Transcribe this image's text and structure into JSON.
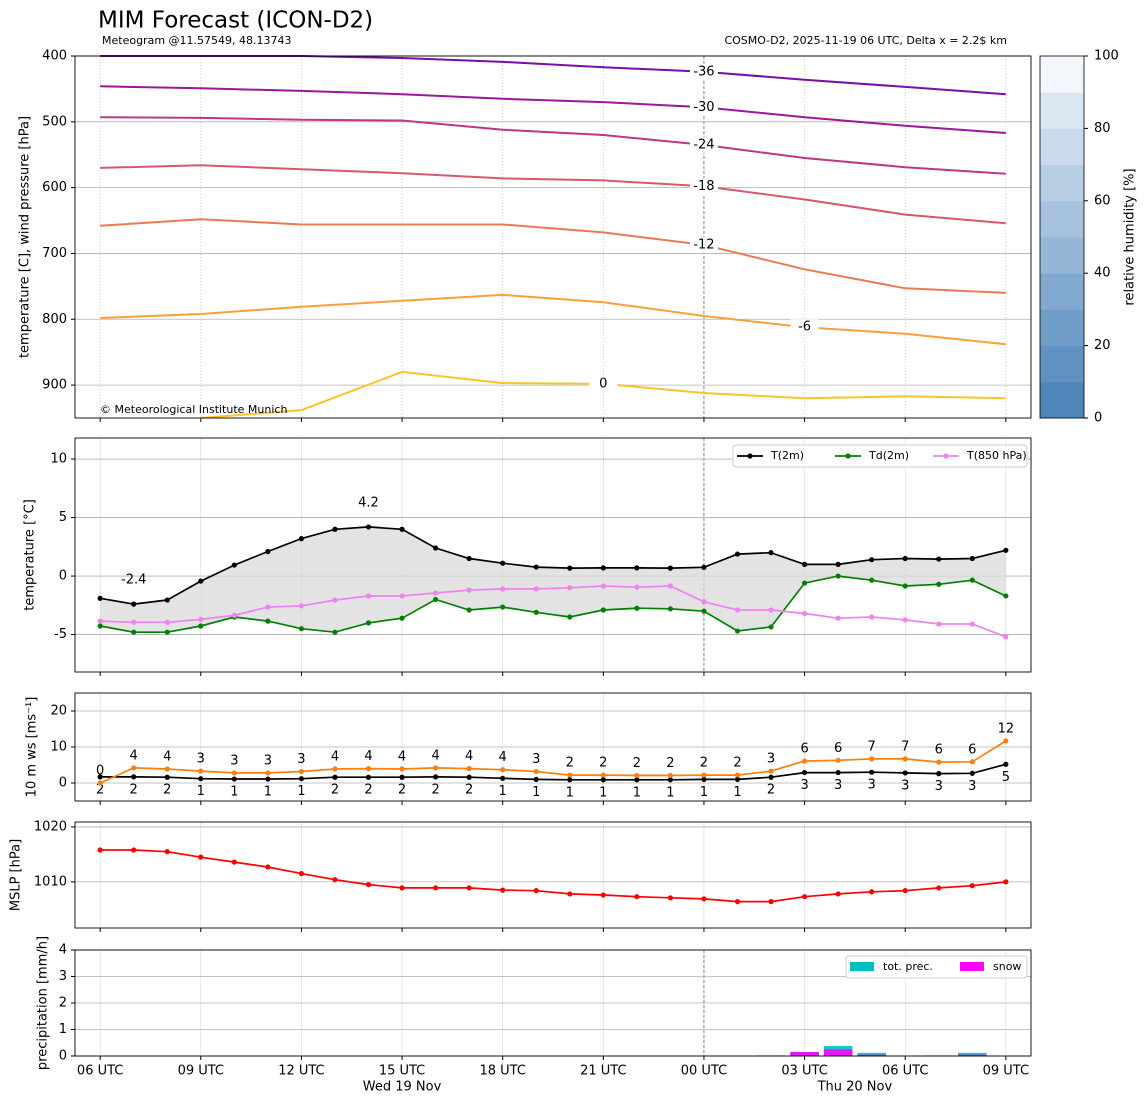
{
  "chart_data": [
    {
      "type": "contour",
      "title": "MIM Forecast (ICON-D2)",
      "subtitle": "Meteogram @11.57549, 48.13743",
      "subtitle_right": "COSMO-D2, 2025-11-19 06 UTC, Delta x = 2.2$ km",
      "note": "© Meteorological Institute Munich",
      "ylabel": "temperature [C], wind pressure [hPa]",
      "x": [
        0,
        3,
        6,
        9,
        12,
        15,
        18,
        21,
        24,
        27
      ],
      "xlim": [
        -0.75,
        27.75
      ],
      "ylim": [
        950,
        400
      ],
      "yticks": [
        400,
        500,
        600,
        700,
        800,
        900
      ],
      "grid": true,
      "series": [
        {
          "name": "-36",
          "color": "#7a0ca8",
          "values": [
            400,
            400,
            400,
            403,
            409,
            417,
            424,
            436,
            447,
            458
          ]
        },
        {
          "name": "-30",
          "color": "#9c179e",
          "values": [
            446,
            449,
            453,
            458,
            465,
            470,
            478,
            493,
            506,
            517
          ]
        },
        {
          "name": "-24",
          "color": "#bd3786",
          "values": [
            493,
            494,
            497,
            498,
            512,
            520,
            535,
            555,
            569,
            579
          ]
        },
        {
          "name": "-18",
          "color": "#d8576b",
          "values": [
            570,
            566,
            572,
            578,
            586,
            589,
            598,
            618,
            641,
            654
          ]
        },
        {
          "name": "-12",
          "color": "#ed7953",
          "values": [
            658,
            648,
            656,
            656,
            656,
            668,
            687,
            724,
            753,
            760
          ]
        },
        {
          "name": "-6",
          "color": "#fb9f3a",
          "values": [
            798,
            792,
            781,
            772,
            763,
            774,
            795,
            812,
            822,
            838
          ]
        },
        {
          "name": "0",
          "color": "#fdc328",
          "values": [
            null,
            950,
            938,
            880,
            897,
            898,
            912,
            920,
            917,
            920
          ]
        }
      ],
      "colorbar": {
        "label": "relative humidity [%]",
        "lim": [
          0,
          100
        ],
        "ticks": [
          0,
          20,
          40,
          60,
          80,
          100
        ],
        "colors": [
          "#4f85b9",
          "#5f91c1",
          "#709dc8",
          "#82aad0",
          "#94b6d7",
          "#a6c2de",
          "#b8cee5",
          "#cadaec",
          "#dbe6f3",
          "#f3f7fb"
        ]
      }
    },
    {
      "type": "line",
      "ylabel": "temperature [°C]",
      "x": [
        0,
        1,
        2,
        3,
        4,
        5,
        6,
        7,
        8,
        9,
        10,
        11,
        12,
        13,
        14,
        15,
        16,
        17,
        18,
        19,
        20,
        21,
        22,
        23,
        24,
        25,
        26,
        27
      ],
      "xlim": [
        -0.75,
        27.75
      ],
      "ylim": [
        -8.2,
        11.8
      ],
      "yticks": [
        -5,
        0,
        5,
        10
      ],
      "grid": true,
      "legend": "upper right",
      "fill_between": true,
      "series": [
        {
          "name": "T(2m)",
          "color": "#000000",
          "values": [
            -1.9,
            -2.4,
            -2.05,
            -0.43,
            0.94,
            2.1,
            3.2,
            4.0,
            4.2,
            4.0,
            2.4,
            1.5,
            1.1,
            0.77,
            0.68,
            0.7,
            0.7,
            0.68,
            0.75,
            1.88,
            2.0,
            1.0,
            1.0,
            1.4,
            1.5,
            1.45,
            1.5,
            2.2
          ]
        },
        {
          "name": "Td(2m)",
          "color": "#008000",
          "values": [
            -4.27,
            -4.8,
            -4.8,
            -4.27,
            -3.5,
            -3.85,
            -4.5,
            -4.8,
            -4.0,
            -3.6,
            -2.0,
            -2.9,
            -2.65,
            -3.1,
            -3.5,
            -2.9,
            -2.75,
            -2.8,
            -3.0,
            -4.7,
            -4.35,
            -0.6,
            0,
            -0.35,
            -0.85,
            -0.7,
            -0.35,
            -1.7
          ]
        },
        {
          "name": "T(850 hPa)",
          "color": "#ee82ee",
          "values": [
            -3.85,
            -3.95,
            -3.95,
            -3.7,
            -3.35,
            -2.65,
            -2.55,
            -2.05,
            -1.7,
            -1.7,
            -1.45,
            -1.2,
            -1.1,
            -1.1,
            -1.0,
            -0.85,
            -0.95,
            -0.85,
            -2.2,
            -2.9,
            -2.9,
            -3.2,
            -3.6,
            -3.5,
            -3.75,
            -4.1,
            -4.1,
            -5.2
          ]
        }
      ],
      "annotations": [
        {
          "x": 8,
          "value": 4.2,
          "color": "#ff0000"
        },
        {
          "x": 1,
          "value": -2.4,
          "color": "#0000ff"
        }
      ]
    },
    {
      "type": "line",
      "ylabel": "10 m ws [ms⁻¹]",
      "x": [
        0,
        1,
        2,
        3,
        4,
        5,
        6,
        7,
        8,
        9,
        10,
        11,
        12,
        13,
        14,
        15,
        16,
        17,
        18,
        19,
        20,
        21,
        22,
        23,
        24,
        25,
        26,
        27
      ],
      "xlim": [
        -0.75,
        27.75
      ],
      "ylim": [
        -5,
        25
      ],
      "yticks": [
        0,
        10,
        20
      ],
      "grid": true,
      "series": [
        {
          "color": "#000000",
          "label_position": "below",
          "values": [
            1.7,
            1.7,
            1.6,
            1.2,
            1.1,
            1.1,
            1.2,
            1.6,
            1.6,
            1.6,
            1.7,
            1.6,
            1.3,
            1.0,
            0.9,
            0.9,
            0.9,
            0.9,
            1.0,
            1.0,
            1.6,
            2.9,
            2.9,
            3.0,
            2.8,
            2.6,
            2.7,
            5.2
          ],
          "value_labels": [
            "2",
            "2",
            "2",
            "1",
            "1",
            "1",
            "1",
            "2",
            "2",
            "2",
            "2",
            "2",
            "1",
            "1",
            "1",
            "1",
            "1",
            "1",
            "1",
            "1",
            "2",
            "3",
            "3",
            "3",
            "3",
            "3",
            "3",
            "5"
          ]
        },
        {
          "color": "#ff7f0e",
          "label_position": "above",
          "values": [
            0,
            4.2,
            3.9,
            3.3,
            2.8,
            2.8,
            3.2,
            3.9,
            4.0,
            3.9,
            4.2,
            4.0,
            3.7,
            3.2,
            2.2,
            2.2,
            2.1,
            2.1,
            2.2,
            2.2,
            3.3,
            6.1,
            6.3,
            6.7,
            6.7,
            5.8,
            5.9,
            11.7
          ],
          "value_labels": [
            "0",
            "4",
            "4",
            "3",
            "3",
            "3",
            "3",
            "4",
            "4",
            "4",
            "4",
            "4",
            "4",
            "3",
            "2",
            "2",
            "2",
            "2",
            "2",
            "2",
            "3",
            "6",
            "6",
            "7",
            "7",
            "6",
            "6",
            "12"
          ]
        }
      ]
    },
    {
      "type": "line",
      "ylabel": "MSLP [hPa]",
      "x": [
        0,
        1,
        2,
        3,
        4,
        5,
        6,
        7,
        8,
        9,
        10,
        11,
        12,
        13,
        14,
        15,
        16,
        17,
        18,
        19,
        20,
        21,
        22,
        23,
        24,
        25,
        26,
        27
      ],
      "xlim": [
        -0.75,
        27.75
      ],
      "ylim": [
        1001.6,
        1020.9
      ],
      "yticks": [
        1010,
        1020
      ],
      "grid": true,
      "series": [
        {
          "color": "#ff0000",
          "values": [
            1015.8,
            1015.8,
            1015.5,
            1014.5,
            1013.6,
            1012.7,
            1011.5,
            1010.4,
            1009.5,
            1008.9,
            1008.9,
            1008.9,
            1008.5,
            1008.4,
            1007.8,
            1007.6,
            1007.3,
            1007.1,
            1006.9,
            1006.4,
            1006.4,
            1007.3,
            1007.8,
            1008.2,
            1008.4,
            1008.9,
            1009.3,
            1010.0
          ]
        }
      ]
    },
    {
      "type": "bar",
      "ylabel": "precipitation [mm/h]",
      "x": [
        20,
        21,
        22,
        23,
        25,
        26
      ],
      "xlim": [
        -0.75,
        27.75
      ],
      "ylim": [
        0,
        4
      ],
      "yticks": [
        0,
        1,
        2,
        3,
        4
      ],
      "grid": true,
      "legend": "upper right",
      "series": [
        {
          "name": "tot. prec.",
          "color": "#00bfbf",
          "values": [
            0.02,
            0.15,
            0.38,
            0.12,
            0.02,
            0.12
          ]
        },
        {
          "name": "snow",
          "color": "#ff00ff",
          "values": [
            0.02,
            0.15,
            0.25,
            0.05,
            0.02,
            0.05
          ]
        }
      ],
      "xticks": [
        {
          "value": 0,
          "label": "06 UTC"
        },
        {
          "value": 3,
          "label": "09 UTC"
        },
        {
          "value": 6,
          "label": "12 UTC"
        },
        {
          "value": 9,
          "label": "15 UTC"
        },
        {
          "value": 12,
          "label": "18 UTC"
        },
        {
          "value": 15,
          "label": "21 UTC"
        },
        {
          "value": 18,
          "label": "00 UTC"
        },
        {
          "value": 21,
          "label": "03 UTC"
        },
        {
          "value": 24,
          "label": "06 UTC"
        },
        {
          "value": 27,
          "label": "09 UTC"
        }
      ],
      "date_labels": [
        {
          "value": 9,
          "label": "Wed 19 Nov"
        },
        {
          "value": 22.5,
          "label": "Thu 20 Nov"
        }
      ],
      "day_line": 18
    }
  ]
}
